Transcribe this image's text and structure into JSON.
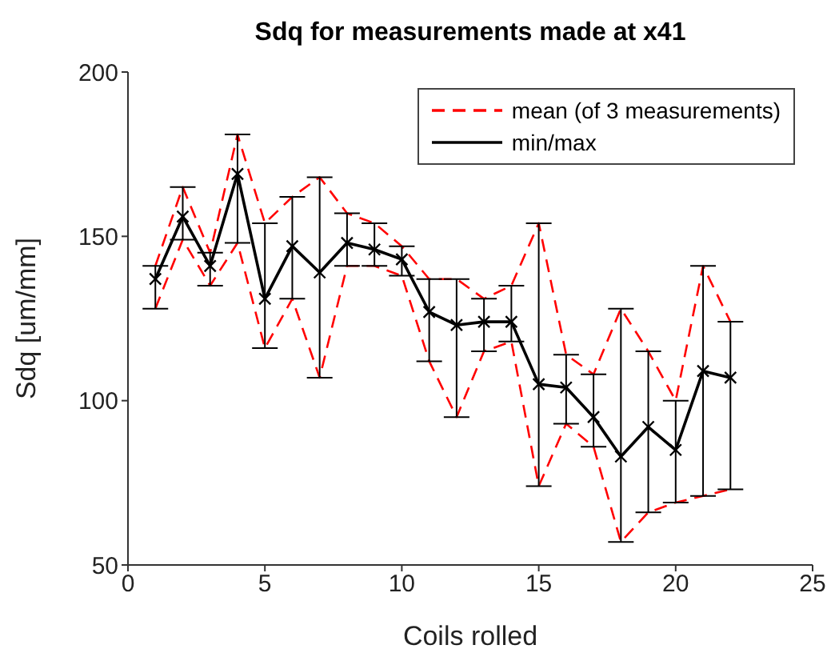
{
  "chart_data": {
    "type": "line",
    "title": "Sdq for measurements made at x41",
    "xlabel": "Coils rolled",
    "ylabel": "Sdq  [um/mm]",
    "x": [
      1,
      2,
      3,
      4,
      5,
      6,
      7,
      8,
      9,
      10,
      11,
      12,
      13,
      14,
      15,
      16,
      17,
      18,
      19,
      20,
      21,
      22
    ],
    "series": [
      {
        "name": "mean (of 3 measurements)",
        "color": "#ff0000",
        "line_style": "dashed",
        "marker": "none",
        "values": [
          141,
          165,
          145,
          181,
          154,
          162,
          168,
          157,
          154,
          147,
          137,
          137,
          131,
          135,
          154,
          114,
          108,
          128,
          115,
          100,
          141,
          124
        ]
      },
      {
        "color": "#ff0000",
        "line_style": "dashed",
        "marker": "none",
        "values": [
          128,
          149,
          135,
          148,
          116,
          131,
          107,
          141,
          141,
          138,
          112,
          95,
          115,
          118,
          74,
          93,
          86,
          57,
          66,
          69,
          71,
          73
        ]
      },
      {
        "name": "min/max",
        "color": "#000000",
        "line_style": "solid",
        "marker": "cross",
        "values": [
          137,
          156,
          141,
          169,
          131,
          147,
          139,
          148,
          146,
          143,
          127,
          123,
          124,
          124,
          105,
          104,
          95,
          83,
          92,
          85,
          109,
          107
        ],
        "errors": [
          [
            128,
            141
          ],
          [
            149,
            165
          ],
          [
            135,
            145
          ],
          [
            148,
            181
          ],
          [
            116,
            154
          ],
          [
            131,
            162
          ],
          [
            107,
            168
          ],
          [
            141,
            157
          ],
          [
            141,
            154
          ],
          [
            138,
            147
          ],
          [
            112,
            137
          ],
          [
            95,
            137
          ],
          [
            115,
            131
          ],
          [
            118,
            135
          ],
          [
            74,
            154
          ],
          [
            93,
            114
          ],
          [
            86,
            108
          ],
          [
            57,
            128
          ],
          [
            66,
            115
          ],
          [
            69,
            100
          ],
          [
            71,
            141
          ],
          [
            73,
            124
          ]
        ]
      }
    ],
    "xlim": [
      0,
      25
    ],
    "xticks": [
      0,
      5,
      10,
      15,
      20,
      25
    ],
    "ylim": [
      50,
      200
    ],
    "yticks": [
      50,
      100,
      150,
      200
    ],
    "grid": false,
    "legend": "top right"
  }
}
